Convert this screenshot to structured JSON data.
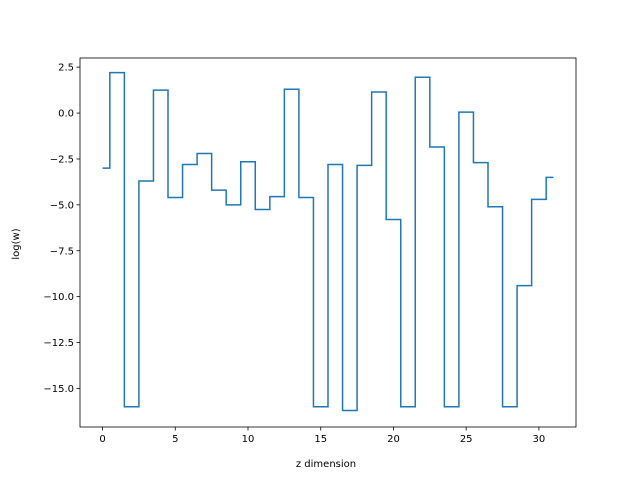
{
  "chart_data": {
    "type": "line",
    "drawstyle": "steps-mid",
    "title": "",
    "xlabel": "z dimension",
    "ylabel": "log(w)",
    "xlim": [
      -1.55,
      32.55
    ],
    "ylim": [
      -17.1,
      3.0
    ],
    "xticks": [
      0,
      5,
      10,
      15,
      20,
      25,
      30
    ],
    "yticks": [
      2.5,
      0.0,
      -2.5,
      -5.0,
      -7.5,
      -10.0,
      -12.5,
      -15.0
    ],
    "ytick_labels": [
      "2.5",
      "0.0",
      "−2.5",
      "−5.0",
      "−7.5",
      "−10.0",
      "−12.5",
      "−15.0"
    ],
    "xtick_labels": [
      "0",
      "5",
      "10",
      "15",
      "20",
      "25",
      "30"
    ],
    "grid": false,
    "series": [
      {
        "color": "#1f77b4",
        "x": [
          0,
          1,
          2,
          3,
          4,
          5,
          6,
          7,
          8,
          9,
          10,
          11,
          12,
          13,
          14,
          15,
          16,
          17,
          18,
          19,
          20,
          21,
          22,
          23,
          24,
          25,
          26,
          27,
          28,
          29,
          30,
          31
        ],
        "values": [
          -3.0,
          2.2,
          -16.0,
          -3.7,
          1.25,
          -4.6,
          -2.8,
          -2.2,
          -4.2,
          -5.0,
          -2.65,
          -5.25,
          -4.55,
          1.3,
          -4.6,
          -16.0,
          -2.8,
          -16.2,
          -2.85,
          1.15,
          -5.8,
          -16.0,
          1.95,
          -1.85,
          -16.0,
          0.05,
          -2.7,
          -5.1,
          -16.0,
          -9.4,
          -4.7,
          -3.5
        ]
      }
    ]
  }
}
